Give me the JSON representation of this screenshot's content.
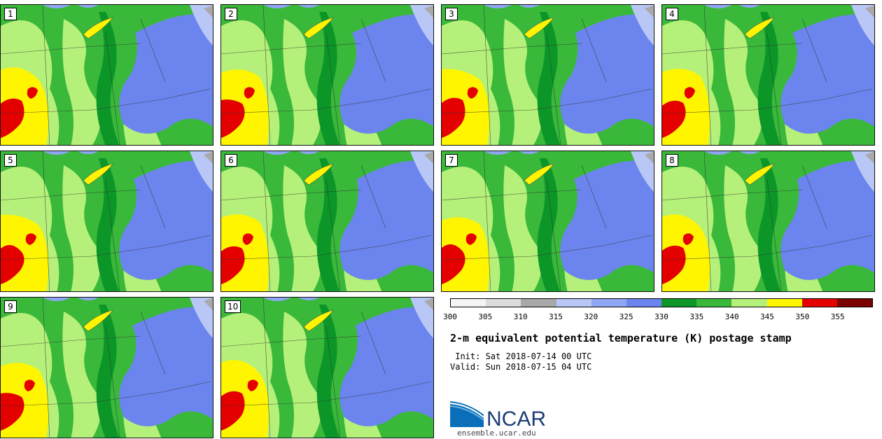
{
  "title": "2-m equivalent potential temperature (K) postage stamp",
  "init": " Init: Sat 2018-07-14 00 UTC",
  "valid": "Valid: Sun 2018-07-15 04 UTC",
  "logo_text": "NCAR",
  "url": "ensemble.ucar.edu",
  "members": [
    "1",
    "2",
    "3",
    "4",
    "5",
    "6",
    "7",
    "8",
    "9",
    "10"
  ],
  "colorbar": {
    "ticks": [
      "300",
      "305",
      "310",
      "315",
      "320",
      "325",
      "330",
      "335",
      "340",
      "345",
      "350",
      "355"
    ],
    "colors": [
      "#f4f4f4",
      "#dcdcdc",
      "#a9a9a9",
      "#b8c7f5",
      "#8fa6f5",
      "#6c85ee",
      "#0c9628",
      "#39b83a",
      "#b5f07a",
      "#fff500",
      "#e50000",
      "#7b0000"
    ]
  },
  "map_colors": {
    "blue_dark": "#6c85ee",
    "blue_mid": "#8fa6f5",
    "blue_light": "#b8c7f5",
    "green_dark": "#0c9628",
    "green_mid": "#39b83a",
    "green_light": "#b5f07a",
    "yellow": "#fff500",
    "red": "#e50000",
    "gray": "#a9a9a9"
  }
}
